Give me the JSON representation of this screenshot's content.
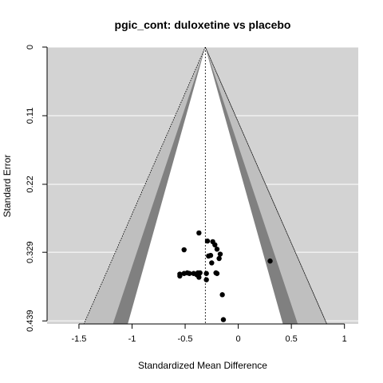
{
  "chart_data": {
    "type": "scatter",
    "subtype": "funnel",
    "title": "pgic_cont: duloxetine vs placebo",
    "xlabel": "Standardized Mean Difference",
    "ylabel": "Standard Error",
    "xlim": [
      -1.8,
      1.13
    ],
    "ylim": [
      0.4439,
      0.0
    ],
    "y_reversed": true,
    "xticks": [
      -1.5,
      -1,
      -0.5,
      0,
      0.5,
      1
    ],
    "xtick_labels": [
      "-1.5",
      "-1",
      "-0.5",
      "0",
      "0.5",
      "1"
    ],
    "yticks": [
      0,
      0.11,
      0.22,
      0.329,
      0.439
    ],
    "ytick_labels": [
      "0",
      "0.11",
      "0.22",
      "0.329",
      "0.439"
    ],
    "grid": "horizontal",
    "center_estimate": -0.31,
    "contour_z": [
      1.645,
      1.96,
      2.576
    ],
    "colors": {
      "panel_background": "#d3d3d3",
      "inner_region": "#ffffff",
      "band_90_95": "#808080",
      "band_95_99": "#bfbfbf",
      "gridline": "#ffffff",
      "points": "#000000"
    },
    "points": [
      {
        "x": -0.37,
        "y": 0.298
      },
      {
        "x": -0.29,
        "y": 0.311
      },
      {
        "x": -0.24,
        "y": 0.312
      },
      {
        "x": -0.51,
        "y": 0.325
      },
      {
        "x": -0.2,
        "y": 0.324
      },
      {
        "x": -0.22,
        "y": 0.317
      },
      {
        "x": -0.17,
        "y": 0.332
      },
      {
        "x": -0.26,
        "y": 0.334
      },
      {
        "x": -0.28,
        "y": 0.335
      },
      {
        "x": -0.18,
        "y": 0.339
      },
      {
        "x": -0.25,
        "y": 0.346
      },
      {
        "x": 0.3,
        "y": 0.343
      },
      {
        "x": -0.21,
        "y": 0.362
      },
      {
        "x": -0.2,
        "y": 0.363
      },
      {
        "x": -0.3,
        "y": 0.363
      },
      {
        "x": -0.55,
        "y": 0.364
      },
      {
        "x": -0.51,
        "y": 0.363
      },
      {
        "x": -0.48,
        "y": 0.362
      },
      {
        "x": -0.46,
        "y": 0.363
      },
      {
        "x": -0.42,
        "y": 0.363
      },
      {
        "x": -0.39,
        "y": 0.365
      },
      {
        "x": -0.38,
        "y": 0.362
      },
      {
        "x": -0.36,
        "y": 0.362
      },
      {
        "x": -0.55,
        "y": 0.367
      },
      {
        "x": -0.37,
        "y": 0.369
      },
      {
        "x": -0.3,
        "y": 0.373
      },
      {
        "x": -0.15,
        "y": 0.397
      },
      {
        "x": -0.14,
        "y": 0.437
      }
    ]
  }
}
